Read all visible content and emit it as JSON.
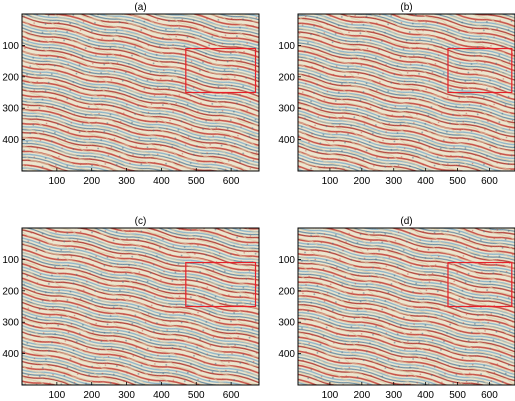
{
  "panels": [
    {
      "title": "(a)",
      "box_color": "#e8202a"
    },
    {
      "title": "(b)",
      "box_color": "#e8202a"
    },
    {
      "title": "(c)",
      "box_color": "#e8202a"
    },
    {
      "title": "(d)",
      "box_color": "#e8202a"
    }
  ],
  "axis": {
    "x_ticks": [
      "100",
      "200",
      "300",
      "400",
      "500",
      "600"
    ],
    "y_ticks": [
      "100",
      "200",
      "300",
      "400"
    ],
    "x_range": [
      0,
      680
    ],
    "y_range": [
      0,
      500
    ]
  },
  "highlight_region": {
    "x": [
      470,
      670
    ],
    "y": [
      110,
      250
    ]
  },
  "colors": {
    "stripe_red": "#c8544a",
    "stripe_blue": "#8fb4c8",
    "stripe_cream": "#ece6cf",
    "background": "#ffffff"
  }
}
